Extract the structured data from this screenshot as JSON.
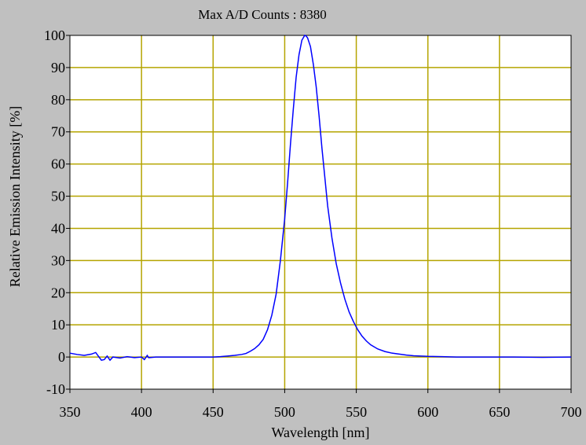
{
  "chart_data": {
    "type": "line",
    "title": "Max A/D Counts : 8380",
    "xlabel": "Wavelength [nm]",
    "ylabel": "Relative Emission Intensity [%]",
    "xlim": [
      350,
      700
    ],
    "ylim": [
      -10,
      100
    ],
    "x_ticks": [
      350,
      400,
      450,
      500,
      550,
      600,
      650,
      700
    ],
    "y_ticks": [
      -10,
      0,
      10,
      20,
      30,
      40,
      50,
      60,
      70,
      80,
      90,
      100
    ],
    "grid": true,
    "legend": "none",
    "colors": {
      "line": "#0000ff",
      "grid": "#b5a400",
      "plot_background": "#ffffff",
      "frame_background": "#c0c0c0"
    },
    "series": [
      {
        "x": [
          350,
          355,
          360,
          365,
          368,
          370,
          372,
          374,
          376,
          378,
          380,
          385,
          390,
          395,
          400,
          402,
          404,
          405,
          410,
          420,
          430,
          440,
          450,
          455,
          460,
          465,
          470,
          473,
          476,
          479,
          482,
          485,
          488,
          491,
          494,
          497,
          500,
          502,
          504,
          506,
          508,
          510,
          512,
          514,
          515,
          516,
          518,
          520,
          522,
          524,
          526,
          528,
          530,
          533,
          536,
          539,
          542,
          545,
          548,
          551,
          554,
          557,
          560,
          565,
          570,
          575,
          580,
          585,
          590,
          595,
          600,
          610,
          620,
          640,
          660,
          680,
          700
        ],
        "y": [
          1.2,
          0.8,
          0.5,
          0.9,
          1.4,
          0.2,
          -1.0,
          -0.8,
          0.3,
          -1.0,
          0.0,
          -0.3,
          0.1,
          -0.2,
          0.0,
          -0.8,
          0.5,
          -0.2,
          0.0,
          0.0,
          0.0,
          0.0,
          0.0,
          0.1,
          0.3,
          0.5,
          0.8,
          1.1,
          1.8,
          2.6,
          3.8,
          5.5,
          8.5,
          13.0,
          19.5,
          30.0,
          43.0,
          54.0,
          66.0,
          77.0,
          87.0,
          94.0,
          98.5,
          100.0,
          99.8,
          99.2,
          96.5,
          91.0,
          84.0,
          75.0,
          65.0,
          56.0,
          47.0,
          37.0,
          29.0,
          23.0,
          18.0,
          14.0,
          11.0,
          8.5,
          6.5,
          5.0,
          3.8,
          2.5,
          1.7,
          1.2,
          0.9,
          0.6,
          0.4,
          0.3,
          0.2,
          0.1,
          0.0,
          0.0,
          0.0,
          -0.1,
          0.0
        ]
      }
    ]
  }
}
